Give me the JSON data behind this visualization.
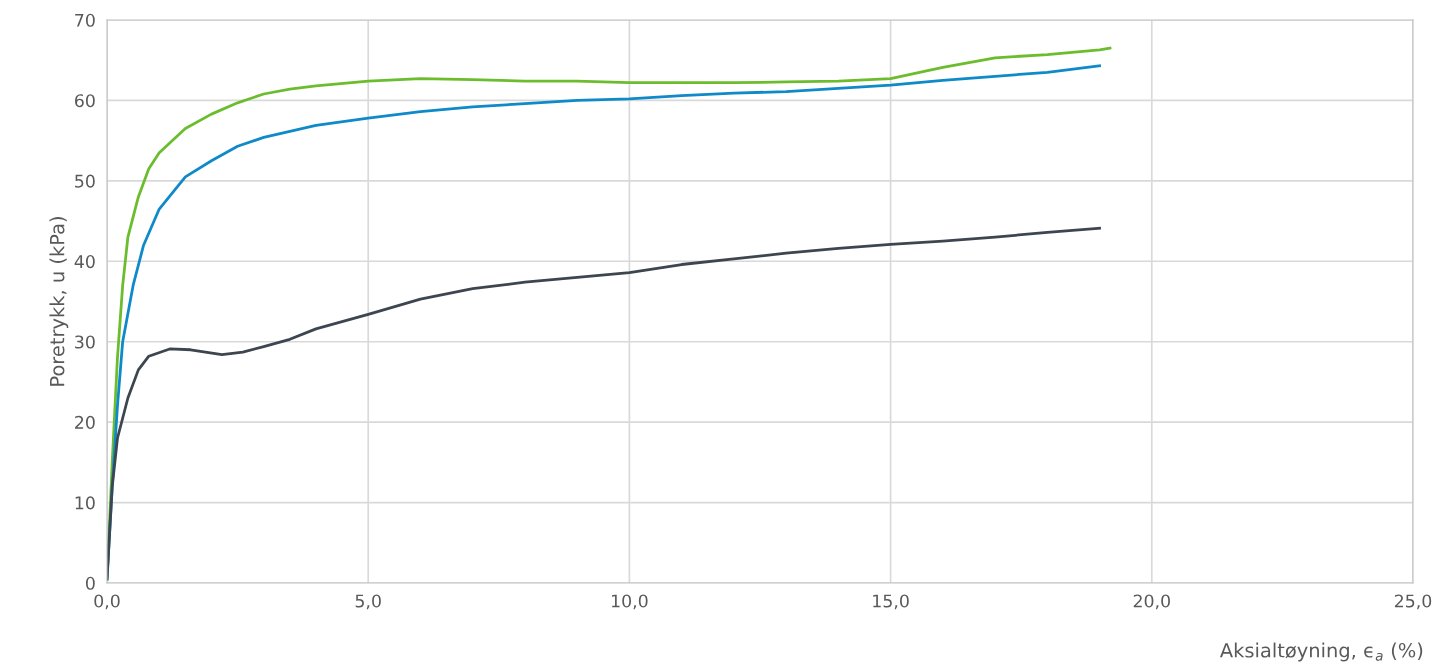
{
  "chart_data": {
    "type": "line",
    "xlabel": "Aksialtøyning, ϵ$_{a}$ (%)",
    "ylabel": "Poretrykk, u (kPa)",
    "xlim": [
      0,
      25
    ],
    "xticks": [
      {
        "value": 0,
        "label": "0,0"
      },
      {
        "value": 5,
        "label": "5,0"
      },
      {
        "value": 10,
        "label": "10,0"
      },
      {
        "value": 15,
        "label": "15,0"
      },
      {
        "value": 20,
        "label": "20,0"
      },
      {
        "value": 25,
        "label": "25,0"
      }
    ],
    "ylim": [
      0,
      70
    ],
    "yticks": [
      0,
      10,
      20,
      30,
      40,
      50,
      60,
      70
    ],
    "grid": true,
    "marker": "none",
    "line_style": "solid",
    "series": [
      {
        "color": "#6cbd2e",
        "x": [
          0,
          0.1,
          0.2,
          0.3,
          0.4,
          0.6,
          0.8,
          1.0,
          1.5,
          2,
          2.5,
          3,
          3.5,
          4,
          5,
          6,
          7,
          8,
          9,
          10,
          11,
          12,
          13,
          14,
          15,
          16,
          17,
          18,
          19,
          19.2
        ],
        "values": [
          0.5,
          15,
          28,
          37,
          43,
          48,
          51.5,
          53.5,
          56.5,
          58.3,
          59.7,
          60.8,
          61.4,
          61.8,
          62.4,
          62.7,
          62.6,
          62.4,
          62.4,
          62.2,
          62.2,
          62.2,
          62.3,
          62.4,
          62.7,
          64.1,
          65.3,
          65.7,
          66.3,
          66.5
        ]
      },
      {
        "color": "#0f8ac9",
        "x": [
          0,
          0.1,
          0.2,
          0.3,
          0.5,
          0.7,
          1,
          1.5,
          2,
          2.5,
          3,
          4,
          5,
          6,
          7,
          8,
          9,
          10,
          11,
          12,
          13,
          14,
          15,
          16,
          17,
          18,
          19
        ],
        "values": [
          0.5,
          12,
          22,
          30,
          37,
          42,
          46.5,
          50.5,
          52.5,
          54.3,
          55.4,
          56.9,
          57.8,
          58.6,
          59.2,
          59.6,
          60.0,
          60.2,
          60.6,
          60.9,
          61.1,
          61.5,
          61.9,
          62.5,
          63.0,
          63.5,
          64.3
        ]
      },
      {
        "color": "#3d4650",
        "x": [
          0,
          0.1,
          0.2,
          0.4,
          0.6,
          0.8,
          1.2,
          1.6,
          2.2,
          2.6,
          3,
          3.5,
          4,
          5,
          6,
          7,
          8,
          9,
          10,
          11,
          12,
          13,
          14,
          15,
          16,
          17,
          18,
          19
        ],
        "values": [
          0.5,
          12,
          18,
          23,
          26.5,
          28.2,
          29.1,
          29.0,
          28.4,
          28.7,
          29.4,
          30.3,
          31.6,
          33.4,
          35.3,
          36.6,
          37.4,
          38.0,
          38.6,
          39.6,
          40.3,
          41.0,
          41.6,
          42.1,
          42.5,
          43.0,
          43.6,
          44.1
        ]
      }
    ]
  }
}
